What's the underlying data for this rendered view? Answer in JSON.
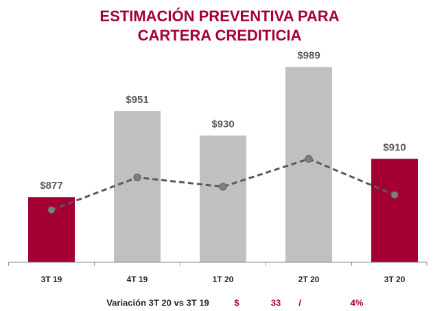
{
  "chart_data": {
    "type": "bar",
    "title": [
      "ESTIMACIÓN PREVENTIVA PARA",
      "CARTERA CREDITICIA"
    ],
    "categories": [
      "3T 19",
      "4T 19",
      "1T 20",
      "2T 20",
      "3T 20"
    ],
    "values": [
      877,
      951,
      930,
      989,
      910
    ],
    "value_labels": [
      "$877",
      "$951",
      "$930",
      "$989",
      "$910"
    ],
    "colors": [
      "#a50034",
      "#c0c0c0",
      "#c0c0c0",
      "#c0c0c0",
      "#a50034"
    ],
    "line": {
      "values": [
        866,
        894,
        886,
        910,
        879
      ],
      "color": "#595959",
      "dashed": true
    },
    "ylim": [
      821,
      1000
    ],
    "footer": [
      "Variación 3T 20 vs 3T 19",
      "$",
      "33",
      "/",
      "4%"
    ]
  }
}
